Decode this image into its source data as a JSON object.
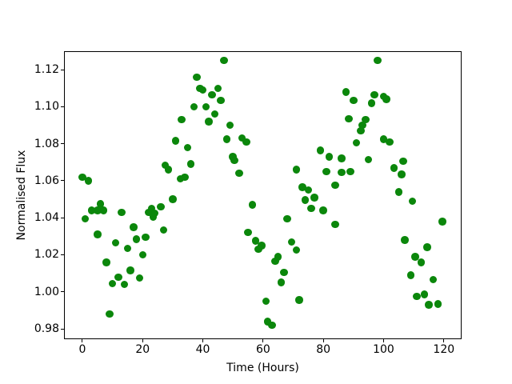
{
  "figure": {
    "background": "#ffffff"
  },
  "chart_data": {
    "type": "scatter",
    "title": "",
    "xlabel": "Time (Hours)",
    "ylabel": "Normalised Flux",
    "legend": null,
    "grid": false,
    "marker_color": "#0b870b",
    "marker_diameter_px": 9.5,
    "xlim": [
      -6.1,
      125.9
    ],
    "ylim": [
      0.9744,
      1.13
    ],
    "xticks": [
      "0",
      "20",
      "40",
      "60",
      "80",
      "100",
      "120"
    ],
    "yticks": [
      "0.98",
      "1.00",
      "1.02",
      "1.04",
      "1.06",
      "1.08",
      "1.10",
      "1.12"
    ],
    "points": [
      [
        0,
        1.062
      ],
      [
        1,
        1.0395
      ],
      [
        2,
        1.06
      ],
      [
        3,
        1.044
      ],
      [
        5,
        1.044
      ],
      [
        5,
        1.031
      ],
      [
        6,
        1.0475
      ],
      [
        7,
        1.044
      ],
      [
        8,
        1.016
      ],
      [
        9,
        0.988
      ],
      [
        10,
        1.0045
      ],
      [
        11,
        1.0265
      ],
      [
        12,
        1.008
      ],
      [
        13,
        1.043
      ],
      [
        14,
        1.004
      ],
      [
        15,
        1.0235
      ],
      [
        16,
        1.0115
      ],
      [
        17,
        1.035
      ],
      [
        18,
        1.0285
      ],
      [
        19,
        1.0075
      ],
      [
        20,
        1.02
      ],
      [
        21,
        1.0295
      ],
      [
        22,
        1.043
      ],
      [
        23,
        1.045
      ],
      [
        23.5,
        1.0405
      ],
      [
        24,
        1.0425
      ],
      [
        26,
        1.046
      ],
      [
        27,
        1.0335
      ],
      [
        27.5,
        1.0685
      ],
      [
        28.5,
        1.066
      ],
      [
        30,
        1.05
      ],
      [
        31,
        1.0815
      ],
      [
        32.5,
        1.061
      ],
      [
        33,
        1.093
      ],
      [
        34,
        1.062
      ],
      [
        35,
        1.078
      ],
      [
        36,
        1.069
      ],
      [
        37,
        1.1
      ],
      [
        38,
        1.116
      ],
      [
        39,
        1.11
      ],
      [
        40,
        1.109
      ],
      [
        41,
        1.1
      ],
      [
        42,
        1.092
      ],
      [
        43,
        1.1065
      ],
      [
        44,
        1.096
      ],
      [
        45,
        1.11
      ],
      [
        46,
        1.1035
      ],
      [
        47,
        1.125
      ],
      [
        48,
        1.0825
      ],
      [
        49,
        1.09
      ],
      [
        50,
        1.073
      ],
      [
        50.5,
        1.071
      ],
      [
        52,
        1.064
      ],
      [
        53,
        1.083
      ],
      [
        54.5,
        1.081
      ],
      [
        55,
        1.032
      ],
      [
        56.5,
        1.047
      ],
      [
        57.5,
        1.0275
      ],
      [
        58.5,
        1.023
      ],
      [
        59.5,
        1.025
      ],
      [
        61,
        0.995
      ],
      [
        61.5,
        0.984
      ],
      [
        63,
        0.982
      ],
      [
        64,
        1.0165
      ],
      [
        65,
        1.019
      ],
      [
        66,
        1.005
      ],
      [
        67,
        1.0105
      ],
      [
        68,
        1.0395
      ],
      [
        69.5,
        1.027
      ],
      [
        71,
        1.0225
      ],
      [
        71,
        1.066
      ],
      [
        72,
        0.9955
      ],
      [
        73,
        1.0565
      ],
      [
        74,
        1.0495
      ],
      [
        75,
        1.055
      ],
      [
        76,
        1.045
      ],
      [
        77,
        1.051
      ],
      [
        79,
        1.0765
      ],
      [
        80,
        1.044
      ],
      [
        81,
        1.065
      ],
      [
        82,
        1.073
      ],
      [
        84,
        1.0575
      ],
      [
        84,
        1.0365
      ],
      [
        86,
        1.072
      ],
      [
        86,
        1.0645
      ],
      [
        87.5,
        1.108
      ],
      [
        88.5,
        1.0935
      ],
      [
        89,
        1.065
      ],
      [
        90,
        1.1035
      ],
      [
        91,
        1.0805
      ],
      [
        92.5,
        1.087
      ],
      [
        93,
        1.09
      ],
      [
        94,
        1.093
      ],
      [
        95,
        1.0715
      ],
      [
        96,
        1.102
      ],
      [
        97,
        1.1065
      ],
      [
        98,
        1.125
      ],
      [
        100,
        1.1055
      ],
      [
        100,
        1.0825
      ],
      [
        101,
        1.104
      ],
      [
        102,
        1.081
      ],
      [
        103.5,
        1.067
      ],
      [
        105,
        1.054
      ],
      [
        106,
        1.0635
      ],
      [
        106.5,
        1.0705
      ],
      [
        107,
        1.028
      ],
      [
        109,
        1.009
      ],
      [
        109.5,
        1.049
      ],
      [
        110.5,
        1.019
      ],
      [
        111,
        0.9975
      ],
      [
        112.5,
        1.016
      ],
      [
        113.5,
        0.9985
      ],
      [
        114.5,
        1.024
      ],
      [
        115,
        0.993
      ],
      [
        116.5,
        1.0065
      ],
      [
        118,
        0.9935
      ],
      [
        119.5,
        1.038
      ]
    ]
  }
}
